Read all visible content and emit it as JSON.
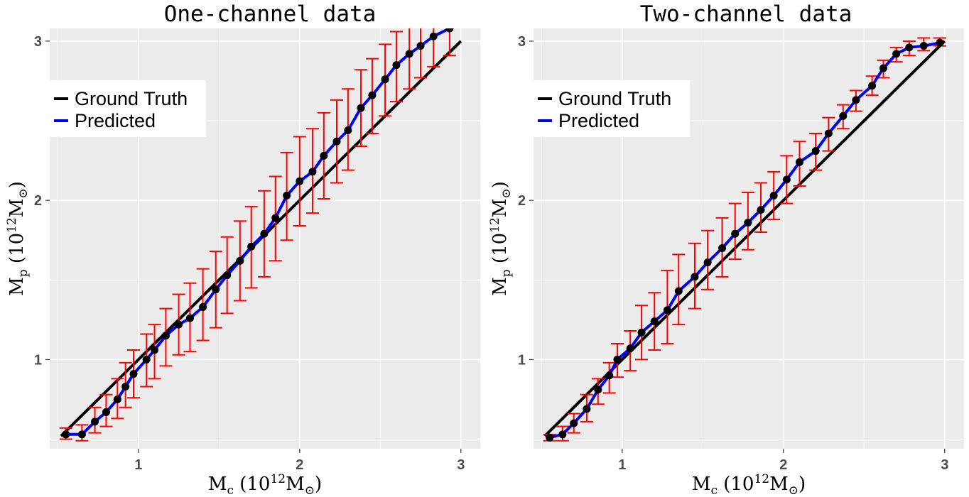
{
  "chart_data": [
    {
      "type": "line",
      "title": "One-channel data",
      "xlabel": "M_c (10^12 M_⊙)",
      "ylabel": "M_p (10^12 M_⊙)",
      "xlim": [
        0.45,
        3.12
      ],
      "ylim": [
        0.44,
        3.08
      ],
      "xticks": [
        1,
        2,
        3
      ],
      "yticks": [
        1,
        2,
        3
      ],
      "grid": true,
      "legend": {
        "position": "top-left",
        "entries": [
          "Ground Truth",
          "Predicted"
        ]
      },
      "colors": {
        "ground_truth": "#000000",
        "predicted": "#0000ff",
        "error_bars": "#ff0000",
        "points": "#000000"
      },
      "series": [
        {
          "name": "Ground Truth",
          "x": [
            0.52,
            3.0
          ],
          "y": [
            0.52,
            3.0
          ]
        },
        {
          "name": "Predicted",
          "x": [
            0.55,
            0.65,
            0.73,
            0.8,
            0.87,
            0.92,
            0.97,
            1.05,
            1.1,
            1.17,
            1.25,
            1.32,
            1.4,
            1.48,
            1.55,
            1.63,
            1.7,
            1.78,
            1.85,
            1.92,
            2.0,
            2.08,
            2.15,
            2.23,
            2.3,
            2.38,
            2.45,
            2.53,
            2.6,
            2.68,
            2.75,
            2.83,
            2.93
          ],
          "y": [
            0.53,
            0.53,
            0.61,
            0.67,
            0.75,
            0.83,
            0.91,
            1.0,
            1.06,
            1.15,
            1.22,
            1.26,
            1.33,
            1.44,
            1.53,
            1.62,
            1.71,
            1.79,
            1.89,
            2.03,
            2.12,
            2.18,
            2.28,
            2.37,
            2.44,
            2.58,
            2.66,
            2.76,
            2.85,
            2.92,
            2.97,
            3.03,
            3.08
          ],
          "ylo": [
            0.5,
            0.49,
            0.54,
            0.58,
            0.63,
            0.7,
            0.76,
            0.83,
            0.88,
            0.96,
            1.03,
            1.05,
            1.12,
            1.2,
            1.29,
            1.37,
            1.45,
            1.52,
            1.62,
            1.75,
            1.84,
            1.92,
            2.01,
            2.11,
            2.19,
            2.34,
            2.42,
            2.53,
            2.62,
            2.7,
            2.77,
            2.84,
            2.91
          ],
          "yhi": [
            0.57,
            0.59,
            0.7,
            0.78,
            0.88,
            0.98,
            1.06,
            1.16,
            1.22,
            1.32,
            1.41,
            1.48,
            1.57,
            1.68,
            1.77,
            1.87,
            1.96,
            2.06,
            2.15,
            2.3,
            2.4,
            2.45,
            2.55,
            2.63,
            2.7,
            2.82,
            2.89,
            2.98,
            3.06,
            3.12,
            3.16,
            3.2,
            3.24
          ]
        }
      ]
    },
    {
      "type": "line",
      "title": "Two-channel data",
      "xlabel": "M_c (10^12 M_⊙)",
      "ylabel": "M_p (10^12 M_⊙)",
      "xlim": [
        0.45,
        3.12
      ],
      "ylim": [
        0.44,
        3.08
      ],
      "xticks": [
        1,
        2,
        3
      ],
      "yticks": [
        1,
        2,
        3
      ],
      "grid": true,
      "legend": {
        "position": "top-left",
        "entries": [
          "Ground Truth",
          "Predicted"
        ]
      },
      "colors": {
        "ground_truth": "#000000",
        "predicted": "#0000ff",
        "error_bars": "#ff0000",
        "points": "#000000"
      },
      "series": [
        {
          "name": "Ground Truth",
          "x": [
            0.52,
            3.0
          ],
          "y": [
            0.52,
            3.0
          ]
        },
        {
          "name": "Predicted",
          "x": [
            0.55,
            0.63,
            0.7,
            0.78,
            0.85,
            0.92,
            0.97,
            1.05,
            1.12,
            1.2,
            1.28,
            1.35,
            1.45,
            1.53,
            1.62,
            1.7,
            1.78,
            1.86,
            1.94,
            2.02,
            2.1,
            2.2,
            2.28,
            2.37,
            2.45,
            2.55,
            2.62,
            2.7,
            2.78,
            2.87,
            2.97
          ],
          "y": [
            0.51,
            0.53,
            0.6,
            0.69,
            0.81,
            0.9,
            1.0,
            1.07,
            1.17,
            1.24,
            1.31,
            1.43,
            1.52,
            1.61,
            1.7,
            1.79,
            1.86,
            1.94,
            2.03,
            2.13,
            2.24,
            2.31,
            2.42,
            2.53,
            2.63,
            2.72,
            2.83,
            2.92,
            2.96,
            2.97,
            2.99
          ],
          "ylo": [
            0.49,
            0.49,
            0.54,
            0.61,
            0.72,
            0.79,
            0.89,
            0.93,
            1.0,
            1.06,
            1.1,
            1.22,
            1.32,
            1.44,
            1.52,
            1.63,
            1.69,
            1.8,
            1.88,
            1.98,
            2.09,
            2.19,
            2.31,
            2.45,
            2.56,
            2.66,
            2.77,
            2.87,
            2.91,
            2.94,
            2.97
          ],
          "yhi": [
            0.53,
            0.58,
            0.66,
            0.78,
            0.88,
            0.98,
            1.1,
            1.18,
            1.34,
            1.42,
            1.56,
            1.66,
            1.73,
            1.81,
            1.89,
            1.98,
            2.05,
            2.11,
            2.18,
            2.28,
            2.37,
            2.42,
            2.52,
            2.6,
            2.69,
            2.78,
            2.88,
            2.96,
            3.0,
            3.02,
            3.02
          ]
        }
      ]
    }
  ]
}
